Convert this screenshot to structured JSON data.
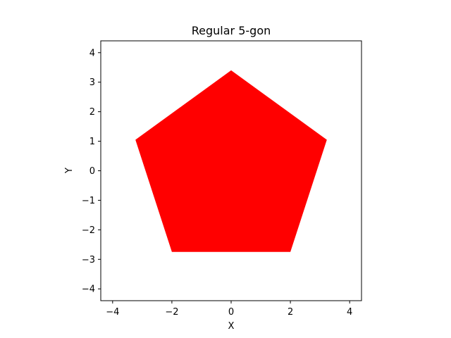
{
  "chart_data": {
    "type": "area",
    "title": "Regular 5-gon",
    "xlabel": "X",
    "ylabel": "Y",
    "xlim": [
      -4.4,
      4.4
    ],
    "ylim": [
      -4.4,
      4.4
    ],
    "x_ticks": [
      -4,
      -2,
      0,
      2,
      4
    ],
    "y_ticks": [
      -4,
      -3,
      -2,
      -1,
      0,
      1,
      2,
      3,
      4
    ],
    "x_tick_labels": [
      "−4",
      "−2",
      "0",
      "2",
      "4"
    ],
    "y_tick_labels": [
      "−4",
      "−3",
      "−2",
      "−1",
      "0",
      "1",
      "2",
      "3",
      "4"
    ],
    "grid": false,
    "series": [
      {
        "color": "#ff0000",
        "points": [
          {
            "x": 0.0,
            "y": 3.4
          },
          {
            "x": 3.23,
            "y": 1.05
          },
          {
            "x": 2.0,
            "y": -2.75
          },
          {
            "x": -2.0,
            "y": -2.75
          },
          {
            "x": -3.23,
            "y": 1.05
          }
        ]
      }
    ]
  }
}
